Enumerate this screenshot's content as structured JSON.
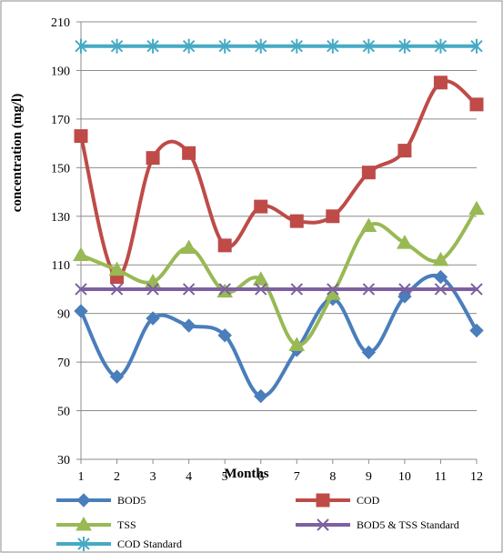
{
  "chart_data": {
    "type": "line",
    "xlabel": "Months",
    "ylabel": "concentration (mg/l)",
    "x": [
      1,
      2,
      3,
      4,
      5,
      6,
      7,
      8,
      9,
      10,
      11,
      12
    ],
    "xlim": [
      1,
      12
    ],
    "ylim": [
      30,
      210
    ],
    "yticks": [
      30,
      50,
      70,
      90,
      110,
      130,
      150,
      170,
      190,
      210
    ],
    "grid": true,
    "legend_position": "bottom",
    "series": [
      {
        "name": "BOD5",
        "color": "#4a7ebb",
        "marker": "diamond",
        "smooth": true,
        "values": [
          91,
          64,
          88,
          85,
          81,
          56,
          75,
          96,
          74,
          97,
          105,
          83
        ]
      },
      {
        "name": "COD",
        "color": "#be4b48",
        "marker": "square",
        "smooth": true,
        "values": [
          163,
          105,
          154,
          156,
          118,
          134,
          128,
          130,
          148,
          157,
          185,
          176
        ]
      },
      {
        "name": "TSS",
        "color": "#98b954",
        "marker": "triangle",
        "smooth": true,
        "values": [
          114,
          108,
          103,
          117,
          99,
          104,
          77,
          98,
          126,
          119,
          112,
          133
        ]
      },
      {
        "name": "BOD5 & TSS Standard",
        "color": "#7d60a0",
        "marker": "x",
        "smooth": false,
        "values": [
          100,
          100,
          100,
          100,
          100,
          100,
          100,
          100,
          100,
          100,
          100,
          100
        ]
      },
      {
        "name": "COD Standard",
        "color": "#46aac5",
        "marker": "asterisk",
        "smooth": false,
        "values": [
          200,
          200,
          200,
          200,
          200,
          200,
          200,
          200,
          200,
          200,
          200,
          200
        ]
      }
    ]
  }
}
